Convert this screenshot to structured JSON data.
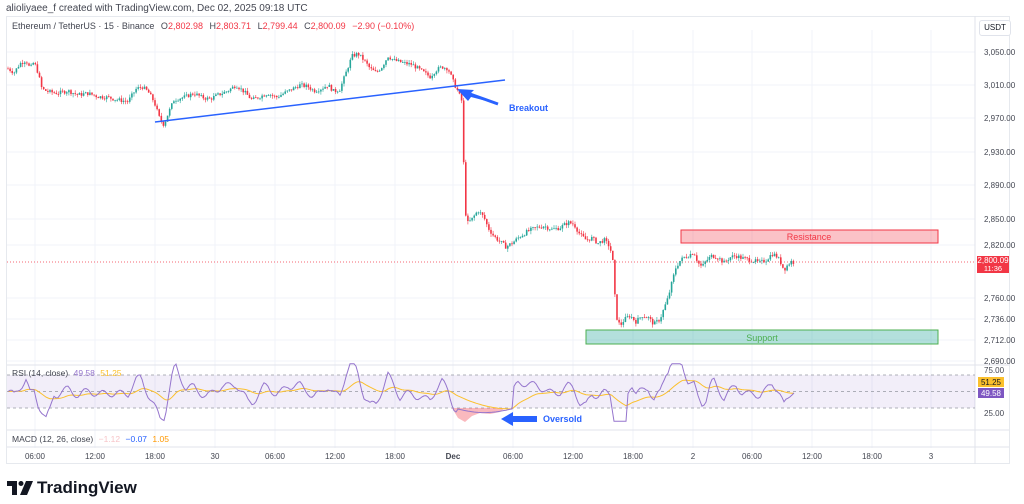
{
  "attribution": "alioliyaee_f created with TradingView.com, Dec 02, 2025 09:18 UTC",
  "header": {
    "symbol": "Ethereum / TetherUS · 15 · Binance",
    "open_label": "O",
    "open": "2,802.98",
    "high_label": "H",
    "high": "2,803.71",
    "low_label": "L",
    "low": "2,799.44",
    "close_label": "C",
    "close": "2,800.09",
    "change": "−2.90 (−0.10%)",
    "currency": "USDT"
  },
  "colors": {
    "up": "#26a69a",
    "down": "#f23645",
    "trendline": "#2962ff",
    "resistance_fill": "rgba(242,54,69,0.30)",
    "resistance_border": "#f23645",
    "support_fill": "rgba(38,166,154,0.35)",
    "support_border": "#4caf50",
    "rsi_line": "#9575cd",
    "rsi_ma": "#fbc02d",
    "rsi_band": "rgba(126,87,194,0.10)",
    "price_tag": "#f23645"
  },
  "price_axis": {
    "ticks": [
      "3,050.00",
      "3,010.00",
      "2,970.00",
      "2,930.00",
      "2,890.00",
      "2,850.00",
      "2,820.00",
      "2,760.00",
      "2,736.00",
      "2,712.00",
      "2,690.00"
    ],
    "current_price": "2,800.09",
    "countdown": "11:36"
  },
  "time_axis": {
    "ticks": [
      "06:00",
      "12:00",
      "18:00",
      "30",
      "06:00",
      "12:00",
      "18:00",
      "Dec",
      "06:00",
      "12:00",
      "18:00",
      "2",
      "06:00",
      "12:00",
      "18:00",
      "3"
    ]
  },
  "annotations": {
    "breakout": "Breakout",
    "resistance": "Resistance",
    "support": "Support",
    "oversold": "Oversold"
  },
  "rsi": {
    "label": "RSI (14, close)",
    "value": "49.58",
    "ma_value": "51.25",
    "levels": [
      "75.00",
      "25.00"
    ],
    "tag_ma": "51.25",
    "tag_value": "49.58"
  },
  "macd": {
    "label": "MACD (12, 26, close)",
    "hist": "−1.12",
    "macd": "−0.07",
    "signal": "1.05"
  },
  "logo": {
    "text": "TradingView"
  },
  "chart_data": {
    "type": "candlestick",
    "title": "Ethereum / TetherUS · 15 · Binance",
    "xlabel": "",
    "ylabel": "USDT",
    "ylim": [
      2690,
      3070
    ],
    "grid": true,
    "x_ticks": [
      "06:00",
      "12:00",
      "18:00",
      "30",
      "06:00",
      "12:00",
      "18:00",
      "Dec",
      "06:00",
      "12:00",
      "18:00",
      "2",
      "06:00",
      "12:00",
      "18:00",
      "3"
    ],
    "y_ticks": [
      3050,
      3010,
      2970,
      2930,
      2890,
      2850,
      2820,
      2760,
      2736,
      2712,
      2690
    ],
    "price_path": [
      [
        0,
        3030
      ],
      [
        6,
        3025
      ],
      [
        12,
        3036
      ],
      [
        18,
        3040
      ],
      [
        22,
        3030
      ],
      [
        26,
        3038
      ],
      [
        30,
        3025
      ],
      [
        34,
        3005
      ],
      [
        40,
        3002
      ],
      [
        50,
        3000
      ],
      [
        60,
        3003
      ],
      [
        70,
        2998
      ],
      [
        80,
        3000
      ],
      [
        90,
        2996
      ],
      [
        100,
        2995
      ],
      [
        110,
        2992
      ],
      [
        120,
        2990
      ],
      [
        128,
        3005
      ],
      [
        134,
        3008
      ],
      [
        140,
        3002
      ],
      [
        146,
        2990
      ],
      [
        152,
        2968
      ],
      [
        156,
        2962
      ],
      [
        160,
        2975
      ],
      [
        166,
        2992
      ],
      [
        172,
        2994
      ],
      [
        178,
        2996
      ],
      [
        186,
        3000
      ],
      [
        194,
        2995
      ],
      [
        202,
        2993
      ],
      [
        210,
        2998
      ],
      [
        220,
        3003
      ],
      [
        228,
        3010
      ],
      [
        236,
        3002
      ],
      [
        244,
        2992
      ],
      [
        252,
        2996
      ],
      [
        260,
        3000
      ],
      [
        268,
        2995
      ],
      [
        276,
        3000
      ],
      [
        284,
        3005
      ],
      [
        292,
        3010
      ],
      [
        300,
        3008
      ],
      [
        306,
        3003
      ],
      [
        312,
        3005
      ],
      [
        320,
        3010
      ],
      [
        326,
        3002
      ],
      [
        332,
        3005
      ],
      [
        338,
        3025
      ],
      [
        344,
        3045
      ],
      [
        350,
        3048
      ],
      [
        356,
        3040
      ],
      [
        362,
        3030
      ],
      [
        368,
        3025
      ],
      [
        374,
        3032
      ],
      [
        380,
        3045
      ],
      [
        386,
        3040
      ],
      [
        392,
        3038
      ],
      [
        398,
        3036
      ],
      [
        404,
        3035
      ],
      [
        410,
        3030
      ],
      [
        416,
        3025
      ],
      [
        422,
        3020
      ],
      [
        428,
        3028
      ],
      [
        434,
        3032
      ],
      [
        440,
        3030
      ],
      [
        446,
        3012
      ],
      [
        450,
        3002
      ],
      [
        454,
        2990
      ],
      [
        457,
        2860
      ],
      [
        460,
        2845
      ],
      [
        464,
        2850
      ],
      [
        470,
        2860
      ],
      [
        476,
        2852
      ],
      [
        480,
        2840
      ],
      [
        486,
        2830
      ],
      [
        492,
        2824
      ],
      [
        498,
        2818
      ],
      [
        504,
        2822
      ],
      [
        512,
        2830
      ],
      [
        520,
        2836
      ],
      [
        528,
        2840
      ],
      [
        536,
        2842
      ],
      [
        544,
        2838
      ],
      [
        552,
        2840
      ],
      [
        560,
        2846
      ],
      [
        566,
        2844
      ],
      [
        572,
        2832
      ],
      [
        578,
        2826
      ],
      [
        584,
        2828
      ],
      [
        590,
        2822
      ],
      [
        596,
        2826
      ],
      [
        602,
        2818
      ],
      [
        605,
        2800
      ],
      [
        608,
        2740
      ],
      [
        612,
        2728
      ],
      [
        616,
        2735
      ],
      [
        622,
        2740
      ],
      [
        628,
        2733
      ],
      [
        634,
        2740
      ],
      [
        640,
        2738
      ],
      [
        646,
        2730
      ],
      [
        652,
        2736
      ],
      [
        656,
        2748
      ],
      [
        660,
        2760
      ],
      [
        664,
        2778
      ],
      [
        668,
        2795
      ],
      [
        672,
        2802
      ],
      [
        676,
        2806
      ],
      [
        680,
        2808
      ],
      [
        686,
        2812
      ],
      [
        690,
        2800
      ],
      [
        694,
        2795
      ],
      [
        698,
        2802
      ],
      [
        704,
        2808
      ],
      [
        710,
        2806
      ],
      [
        716,
        2800
      ],
      [
        722,
        2806
      ],
      [
        728,
        2808
      ],
      [
        734,
        2805
      ],
      [
        740,
        2804
      ],
      [
        746,
        2802
      ],
      [
        752,
        2800
      ],
      [
        758,
        2803
      ],
      [
        764,
        2810
      ],
      [
        768,
        2808
      ],
      [
        772,
        2802
      ],
      [
        776,
        2792
      ],
      [
        780,
        2798
      ],
      [
        784,
        2802
      ],
      [
        786,
        2800
      ]
    ],
    "last_price": 2800.09,
    "zones": [
      {
        "name": "Resistance",
        "from": 2823,
        "to": 2835
      },
      {
        "name": "Support",
        "from": 2707,
        "to": 2720
      }
    ],
    "trendline": {
      "from": [
        155,
        2962
      ],
      "to": [
        505,
        3015
      ]
    },
    "rsi": {
      "value": 49.58,
      "ma": 51.25,
      "upper": 75,
      "lower": 25,
      "oversold_low": 12
    }
  }
}
